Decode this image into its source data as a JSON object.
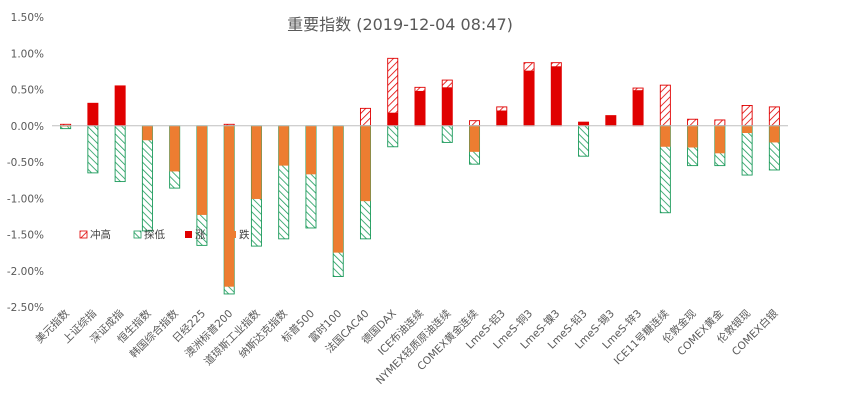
{
  "chart_data": {
    "type": "bar",
    "title": "重要指数 (2019-12-04 08:47)",
    "ylim": [
      -0.025,
      0.015
    ],
    "ytick_labels": [
      "1.50%",
      "1.00%",
      "0.50%",
      "0.00%",
      "-0.50%",
      "-1.00%",
      "-1.50%",
      "-2.00%",
      "-2.50%"
    ],
    "ytick_values": [
      0.015,
      0.01,
      0.005,
      0,
      -0.005,
      -0.01,
      -0.015,
      -0.02,
      -0.025
    ],
    "grid": false,
    "legend_position": "left-middle",
    "categories": [
      "美元指数",
      "上证综指",
      "深证成指",
      "恒生指数",
      "韩国综合指数",
      "日经225",
      "澳洲标普200",
      "道琼斯工业指数",
      "纳斯达克指数",
      "标普500",
      "富时100",
      "法国CAC40",
      "德国DAX",
      "ICE布油连续",
      "NYMEX轻质原油连续",
      "COMEX黄金连续",
      "LmeS-铝3",
      "LmeS-铜3",
      "LmeS-镍3",
      "LmeS-铅3",
      "LmeS-锡3",
      "LmeS-锌3",
      "ICE11号糖连续",
      "伦敦金现",
      "COMEX黄金",
      "伦敦银现",
      "COMEX白银"
    ],
    "series": [
      {
        "name": "冲高",
        "color": "#e00000",
        "pattern": "hatch",
        "values": [
          0.0002,
          0.0031,
          0.0055,
          0,
          0,
          0,
          0.0002,
          0,
          0,
          0,
          0,
          0.0024,
          0.0093,
          0.0053,
          0.0063,
          0.0007,
          0.0026,
          0.0087,
          0.0087,
          0.0005,
          0.0014,
          0.0052,
          0.0056,
          0.0009,
          0.0008,
          0.0028,
          0.0026
        ]
      },
      {
        "name": "探低",
        "color": "#1a9a5a",
        "pattern": "hatch",
        "values": [
          -0.0004,
          -0.0065,
          -0.0077,
          -0.0145,
          -0.0086,
          -0.0165,
          -0.0232,
          -0.0166,
          -0.0156,
          -0.0141,
          -0.0208,
          -0.0156,
          -0.0029,
          0,
          -0.0023,
          -0.0053,
          0,
          0,
          0,
          -0.0042,
          0,
          0,
          -0.012,
          -0.0055,
          -0.0055,
          -0.0068,
          -0.0061
        ]
      },
      {
        "name": "涨",
        "color": "#e00000",
        "pattern": "solid",
        "values": [
          0,
          0.0031,
          0.0055,
          0,
          0,
          0,
          0,
          0,
          0,
          0,
          0,
          0,
          0.0018,
          0.0048,
          0.0053,
          0,
          0.0021,
          0.0076,
          0.0082,
          0.0005,
          0.0014,
          0.0049,
          0,
          0,
          0,
          0,
          0
        ]
      },
      {
        "name": "跌",
        "color": "#ed7d31",
        "pattern": "solid",
        "values": [
          -0.0001,
          0,
          0,
          -0.002,
          -0.0063,
          -0.0123,
          -0.0222,
          -0.0101,
          -0.0055,
          -0.0067,
          -0.0175,
          -0.0104,
          0,
          0,
          0,
          -0.0036,
          0,
          0,
          0,
          0,
          0,
          0,
          -0.0029,
          -0.003,
          -0.0038,
          -0.001,
          -0.0023
        ]
      }
    ]
  }
}
